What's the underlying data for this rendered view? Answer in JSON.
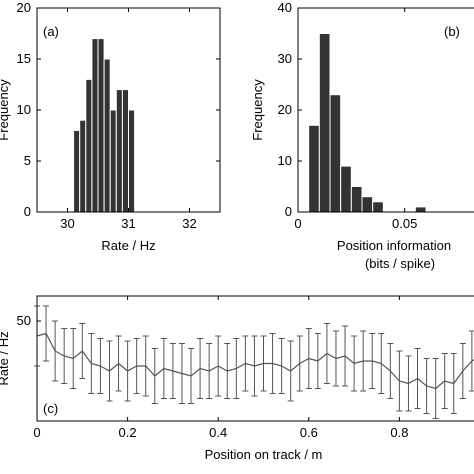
{
  "chart_data": [
    {
      "type": "bar",
      "panel_label": "(a)",
      "xlabel": "Rate / Hz",
      "ylabel": "Frequency",
      "xlim": [
        29.5,
        32.5
      ],
      "ylim": [
        0,
        20
      ],
      "xticks": [
        30,
        31,
        32
      ],
      "yticks": [
        0,
        5,
        10,
        15,
        20
      ],
      "bin_edges": [
        30.1,
        30.2,
        30.3,
        30.4,
        30.5,
        30.6,
        30.7,
        30.8,
        30.9,
        31.0,
        31.1,
        31.2,
        31.3,
        31.4,
        31.5,
        31.6,
        31.7,
        31.8
      ],
      "values": [
        8,
        9,
        13,
        17,
        17,
        15,
        10,
        12,
        12,
        10,
        0,
        0,
        0,
        0,
        0,
        0,
        0
      ]
    },
    {
      "type": "bar",
      "panel_label": "(b)",
      "xlabel": "Position information",
      "xlabel2": "(bits / spike)",
      "ylabel": "Frequency",
      "xlim": [
        0,
        0.09
      ],
      "ylim": [
        0,
        40
      ],
      "xticks": [
        0,
        0.05
      ],
      "yticks": [
        0,
        10,
        20,
        30,
        40
      ],
      "bin_edges": [
        0.005,
        0.01,
        0.015,
        0.02,
        0.025,
        0.03,
        0.035,
        0.04,
        0.045,
        0.05,
        0.055,
        0.06,
        0.065,
        0.07
      ],
      "values": [
        17,
        35,
        23,
        9,
        5,
        3,
        2,
        0,
        0,
        0,
        1,
        0,
        0
      ]
    },
    {
      "type": "line",
      "panel_label": "(c)",
      "xlabel": "Position on track / m",
      "ylabel": "Rate / Hz",
      "xlim": [
        0,
        1
      ],
      "ylim": [
        10,
        60
      ],
      "xticks": [
        0,
        0.2,
        0.4,
        0.6,
        0.8
      ],
      "yticks": [
        50
      ],
      "x": [
        0.0,
        0.02,
        0.04,
        0.06,
        0.08,
        0.1,
        0.12,
        0.14,
        0.16,
        0.18,
        0.2,
        0.22,
        0.24,
        0.26,
        0.28,
        0.3,
        0.32,
        0.34,
        0.36,
        0.38,
        0.4,
        0.42,
        0.44,
        0.46,
        0.48,
        0.5,
        0.52,
        0.54,
        0.56,
        0.58,
        0.6,
        0.62,
        0.64,
        0.66,
        0.68,
        0.7,
        0.72,
        0.74,
        0.76,
        0.78,
        0.8,
        0.82,
        0.84,
        0.86,
        0.88,
        0.9,
        0.92,
        0.94,
        0.96,
        0.98,
        1.0
      ],
      "y": [
        44,
        45,
        38,
        36,
        35,
        38,
        33,
        32,
        30,
        33,
        30,
        32,
        32,
        28,
        31,
        30,
        29,
        28,
        31,
        30,
        32,
        30,
        31,
        33,
        32,
        33,
        33,
        32,
        30,
        33,
        35,
        34,
        37,
        35,
        36,
        33,
        34,
        34,
        33,
        30,
        26,
        25,
        27,
        24,
        23,
        26,
        25,
        30,
        34,
        36,
        45
      ],
      "err": [
        12,
        11,
        12,
        11,
        12,
        11,
        12,
        11,
        12,
        11,
        12,
        11,
        12,
        11,
        12,
        11,
        12,
        11,
        12,
        11,
        12,
        11,
        12,
        11,
        12,
        11,
        12,
        11,
        12,
        11,
        12,
        11,
        12,
        11,
        12,
        11,
        12,
        11,
        12,
        11,
        12,
        11,
        12,
        11,
        12,
        11,
        12,
        11,
        12,
        11,
        12
      ]
    }
  ]
}
